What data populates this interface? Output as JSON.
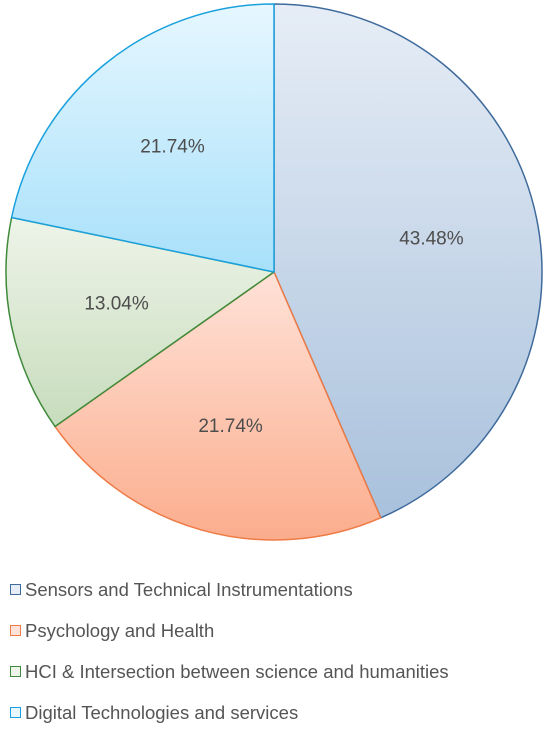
{
  "chart_data": {
    "type": "pie",
    "start_angle": "12 o'clock",
    "direction": "clockwise",
    "legend_position": "bottom",
    "slices": [
      {
        "name": "Sensors and Technical Instrumentations",
        "value": 43.48,
        "label": "43.48%",
        "fill_light": "#e6edf6",
        "fill_dark": "#a9c1dc",
        "stroke": "#3e6a9c"
      },
      {
        "name": "Psychology and Health",
        "value": 21.74,
        "label": "21.74%",
        "fill_light": "#ffe2d8",
        "fill_dark": "#fbad8d",
        "stroke": "#ee7a45"
      },
      {
        "name": "HCI & Intersection between science and humanities",
        "value": 13.04,
        "label": "13.04%",
        "fill_light": "#eef4e9",
        "fill_dark": "#c7dcbc",
        "stroke": "#3f8a3a"
      },
      {
        "name": "Digital Technologies and services",
        "value": 21.74,
        "label": "21.74%",
        "fill_light": "#e6f7ff",
        "fill_dark": "#a8e0fa",
        "stroke": "#1aa1dd"
      }
    ]
  }
}
